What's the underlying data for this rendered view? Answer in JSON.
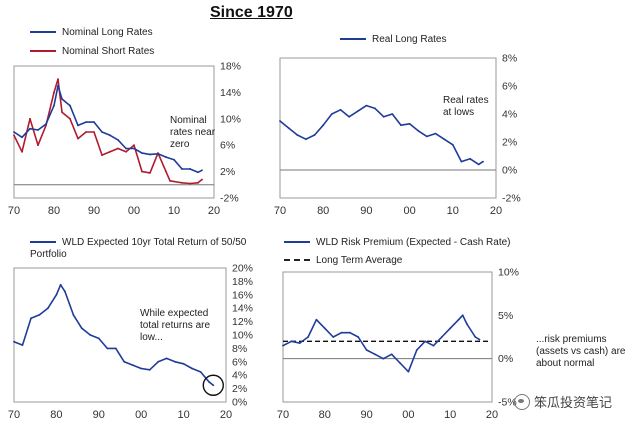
{
  "page": {
    "title": "Since 1970"
  },
  "watermark": {
    "text": "笨瓜投资笔记"
  },
  "chart_data": [
    {
      "type": "line",
      "legend": [
        "Nominal Long Rates",
        "Nominal Short Rates"
      ],
      "annotation": "Nominal\nrates near\nzero",
      "x_ticks": [
        "70",
        "80",
        "90",
        "00",
        "10",
        "20"
      ],
      "y_ticks": [
        "18%",
        "14%",
        "10%",
        "6%",
        "2%",
        "-2%"
      ],
      "ylim": [
        -2,
        18
      ],
      "xlim": [
        1970,
        2020
      ],
      "colors": [
        "#1f3c99",
        "#b01c2e"
      ],
      "series": [
        {
          "name": "Nominal Long Rates",
          "x": [
            1970,
            1972,
            1974,
            1976,
            1978,
            1980,
            1981,
            1982,
            1984,
            1986,
            1988,
            1990,
            1992,
            1994,
            1996,
            1998,
            2000,
            2002,
            2004,
            2006,
            2008,
            2010,
            2012,
            2014,
            2016,
            2017
          ],
          "y": [
            8,
            7.2,
            8.5,
            8.3,
            9.2,
            12,
            15,
            13,
            12,
            9,
            9.5,
            9.5,
            8,
            7.5,
            6.8,
            5.5,
            5.5,
            4.8,
            4.6,
            4.7,
            4.2,
            3.8,
            2.4,
            2.4,
            1.9,
            2.2
          ]
        },
        {
          "name": "Nominal Short Rates",
          "x": [
            1970,
            1972,
            1974,
            1976,
            1978,
            1980,
            1981,
            1982,
            1984,
            1986,
            1988,
            1990,
            1992,
            1994,
            1996,
            1998,
            2000,
            2002,
            2004,
            2006,
            2008,
            2009,
            2010,
            2012,
            2014,
            2016,
            2017
          ],
          "y": [
            7.5,
            5,
            10,
            6,
            9,
            14,
            16,
            11,
            10,
            7,
            8,
            8,
            4.5,
            5,
            5.5,
            5,
            6,
            2,
            1.8,
            4.8,
            2,
            0.6,
            0.5,
            0.3,
            0.2,
            0.3,
            0.8
          ]
        }
      ]
    },
    {
      "type": "line",
      "legend": [
        "Real Long Rates"
      ],
      "annotation": "Real rates\nat lows",
      "x_ticks": [
        "70",
        "80",
        "90",
        "00",
        "10",
        "20"
      ],
      "y_ticks": [
        "8%",
        "6%",
        "4%",
        "2%",
        "0%",
        "-2%"
      ],
      "ylim": [
        -2,
        8
      ],
      "xlim": [
        1970,
        2020
      ],
      "colors": [
        "#1f3c99"
      ],
      "series": [
        {
          "name": "Real Long Rates",
          "x": [
            1970,
            1972,
            1974,
            1976,
            1978,
            1980,
            1982,
            1984,
            1986,
            1988,
            1990,
            1992,
            1994,
            1996,
            1998,
            2000,
            2002,
            2004,
            2006,
            2008,
            2010,
            2012,
            2014,
            2016,
            2017
          ],
          "y": [
            3.5,
            3,
            2.5,
            2.2,
            2.5,
            3.2,
            4,
            4.3,
            3.8,
            4.2,
            4.6,
            4.4,
            3.8,
            4,
            3.2,
            3.3,
            2.8,
            2.4,
            2.6,
            2.2,
            1.8,
            0.6,
            0.8,
            0.4,
            0.6
          ]
        }
      ]
    },
    {
      "type": "line",
      "legend": [
        "WLD Expected 10yr Total Return of 50/50 Portfolio"
      ],
      "annotation": "While expected\ntotal returns are\nlow...",
      "x_ticks": [
        "70",
        "80",
        "90",
        "00",
        "10",
        "20"
      ],
      "y_ticks": [
        "20%",
        "18%",
        "16%",
        "14%",
        "12%",
        "10%",
        "8%",
        "6%",
        "4%",
        "2%",
        "0%"
      ],
      "ylim": [
        0,
        20
      ],
      "xlim": [
        1970,
        2020
      ],
      "colors": [
        "#1f3c99"
      ],
      "series": [
        {
          "name": "WLD Expected 10yr Total Return of 50/50 Portfolio",
          "x": [
            1970,
            1972,
            1974,
            1976,
            1978,
            1980,
            1981,
            1982,
            1984,
            1986,
            1988,
            1990,
            1992,
            1994,
            1996,
            1998,
            2000,
            2002,
            2004,
            2006,
            2008,
            2010,
            2012,
            2014,
            2016,
            2017
          ],
          "y": [
            9,
            8.5,
            12.5,
            13,
            14,
            16,
            17.5,
            16.5,
            13,
            11,
            10,
            9.5,
            8,
            8,
            6,
            5.5,
            5,
            4.8,
            6,
            6.5,
            6,
            5.7,
            5,
            4.5,
            3,
            2.5
          ]
        }
      ]
    },
    {
      "type": "line",
      "legend": [
        "WLD Risk Premium (Expected - Cash Rate)",
        "Long Term Average"
      ],
      "annotation": "...risk premiums\n(assets vs cash) are\nabout normal",
      "x_ticks": [
        "70",
        "80",
        "90",
        "00",
        "10",
        "20"
      ],
      "y_ticks": [
        "10%",
        "5%",
        "0%",
        "-5%"
      ],
      "ylim": [
        -5,
        10
      ],
      "xlim": [
        1970,
        2020
      ],
      "long_term_average": 2,
      "colors": [
        "#1f3c99",
        "#111111"
      ],
      "series": [
        {
          "name": "WLD Risk Premium (Expected - Cash Rate)",
          "x": [
            1970,
            1972,
            1974,
            1976,
            1978,
            1980,
            1982,
            1984,
            1986,
            1988,
            1990,
            1992,
            1994,
            1996,
            1998,
            2000,
            2002,
            2004,
            2006,
            2008,
            2010,
            2012,
            2013,
            2014,
            2016,
            2017
          ],
          "y": [
            1.5,
            2,
            1.8,
            2.5,
            4.5,
            3.5,
            2.5,
            3,
            3,
            2.5,
            1,
            0.5,
            0,
            0.5,
            -0.5,
            -1.5,
            1,
            2,
            1.5,
            2.5,
            3.5,
            4.5,
            5,
            4,
            2.5,
            2.2
          ]
        }
      ]
    }
  ]
}
